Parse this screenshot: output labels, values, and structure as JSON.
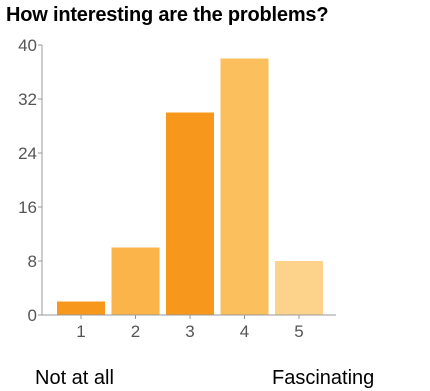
{
  "chart_data": {
    "type": "bar",
    "title": "How interesting are the problems?",
    "categories": [
      "1",
      "2",
      "3",
      "4",
      "5"
    ],
    "values": [
      2,
      10,
      30,
      38,
      8
    ],
    "colors": [
      "#f7981c",
      "#fbb44a",
      "#f7981c",
      "#fbbf5e",
      "#fdd38b"
    ],
    "ylim": [
      0,
      40
    ],
    "yticks": [
      0,
      8,
      16,
      24,
      32,
      40
    ],
    "xlabel": "",
    "ylabel": "",
    "grid": false,
    "scale_low_label": "Not at all",
    "scale_high_label": "Fascinating"
  }
}
